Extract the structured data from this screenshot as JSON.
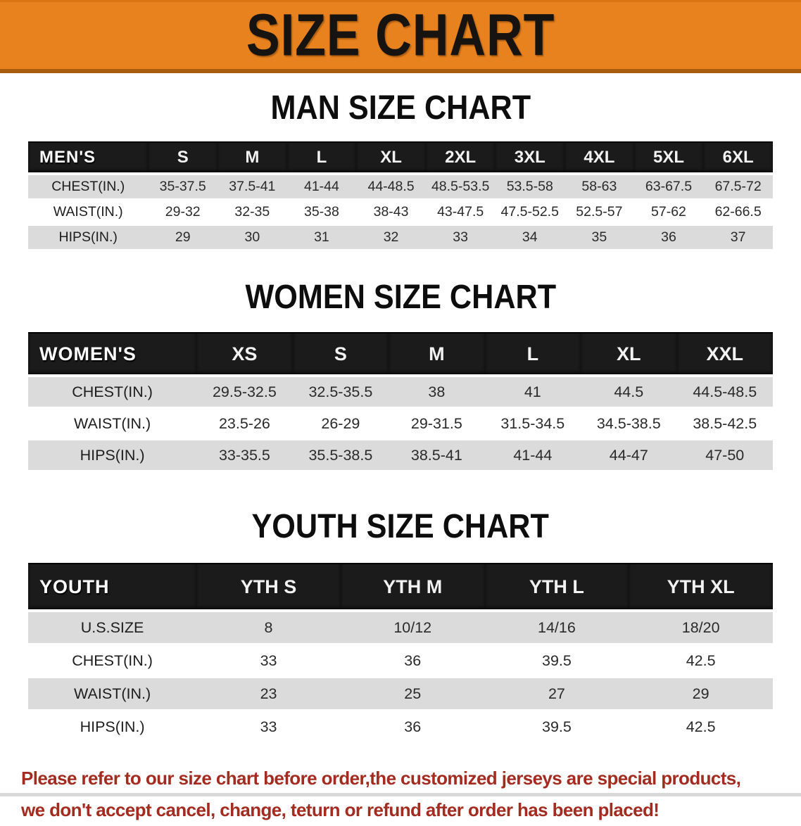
{
  "banner": {
    "title": "SIZE CHART"
  },
  "colors": {
    "banner_bg": "#E8821E",
    "banner_border": "#A85C0E",
    "table_header_bg": "#1B1B1B",
    "row_stripe": "#DBDBDB",
    "disclaimer_red": "#A42B20"
  },
  "tables": [
    {
      "id": "men",
      "css": "men-table",
      "heading": "MAN SIZE CHART",
      "corner_label": "MEN'S",
      "columns": [
        "S",
        "M",
        "L",
        "XL",
        "2XL",
        "3XL",
        "4XL",
        "5XL",
        "6XL"
      ],
      "stripes": [
        true,
        false,
        true
      ],
      "rows": [
        {
          "label": "CHEST(IN.)",
          "values": [
            "35-37.5",
            "37.5-41",
            "41-44",
            "44-48.5",
            "48.5-53.5",
            "53.5-58",
            "58-63",
            "63-67.5",
            "67.5-72"
          ]
        },
        {
          "label": "WAIST(IN.)",
          "values": [
            "29-32",
            "32-35",
            "35-38",
            "38-43",
            "43-47.5",
            "47.5-52.5",
            "52.5-57",
            "57-62",
            "62-66.5"
          ]
        },
        {
          "label": "HIPS(IN.)",
          "values": [
            "29",
            "30",
            "31",
            "32",
            "33",
            "34",
            "35",
            "36",
            "37"
          ]
        }
      ]
    },
    {
      "id": "women",
      "css": "women-table",
      "heading": "WOMEN SIZE CHART",
      "corner_label": "WOMEN'S",
      "columns": [
        "XS",
        "S",
        "M",
        "L",
        "XL",
        "XXL"
      ],
      "stripes": [
        true,
        false,
        true
      ],
      "rows": [
        {
          "label": "CHEST(IN.)",
          "values": [
            "29.5-32.5",
            "32.5-35.5",
            "38",
            "41",
            "44.5",
            "44.5-48.5"
          ]
        },
        {
          "label": "WAIST(IN.)",
          "values": [
            "23.5-26",
            "26-29",
            "29-31.5",
            "31.5-34.5",
            "34.5-38.5",
            "38.5-42.5"
          ]
        },
        {
          "label": "HIPS(IN.)",
          "values": [
            "33-35.5",
            "35.5-38.5",
            "38.5-41",
            "41-44",
            "44-47",
            "47-50"
          ]
        }
      ]
    },
    {
      "id": "youth",
      "css": "youth-table",
      "heading": "YOUTH SIZE CHART",
      "corner_label": "YOUTH",
      "columns": [
        "YTH S",
        "YTH M",
        "YTH L",
        "YTH XL"
      ],
      "stripes": [
        true,
        false,
        true,
        false
      ],
      "rows": [
        {
          "label": "U.S.SIZE",
          "values": [
            "8",
            "10/12",
            "14/16",
            "18/20"
          ]
        },
        {
          "label": "CHEST(IN.)",
          "values": [
            "33",
            "36",
            "39.5",
            "42.5"
          ]
        },
        {
          "label": "WAIST(IN.)",
          "values": [
            "23",
            "25",
            "27",
            "29"
          ]
        },
        {
          "label": "HIPS(IN.)",
          "values": [
            "33",
            "36",
            "39.5",
            "42.5"
          ]
        }
      ]
    }
  ],
  "disclaimer": {
    "line1": "Please refer to our size chart before order,the customized jerseys are special products,",
    "line2": "we don't accept cancel, change, teturn or refund after order has been placed!"
  }
}
